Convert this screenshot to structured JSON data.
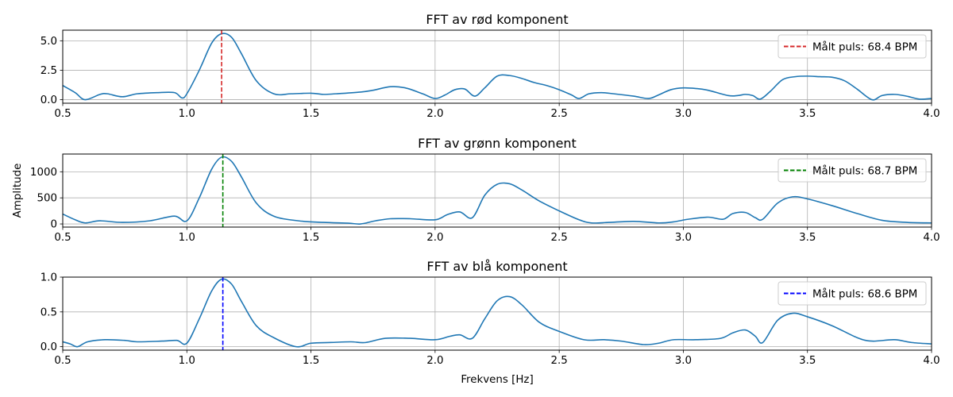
{
  "figure": {
    "xlabel": "Frekvens [Hz]",
    "ylabel": "Amplitude"
  },
  "chart_data": [
    {
      "type": "line",
      "title": "FFT av rød komponent",
      "xlabel": "",
      "ylabel": "",
      "xlim": [
        0.5,
        4.0
      ],
      "ylim": [
        -0.3,
        5.9
      ],
      "xticks": [
        0.5,
        1.0,
        1.5,
        2.0,
        2.5,
        3.0,
        3.5,
        4.0
      ],
      "xtick_labels": [
        "0.5",
        "1.0",
        "1.5",
        "2.0",
        "2.5",
        "3.0",
        "3.5",
        "4.0"
      ],
      "yticks": [
        0.0,
        2.5,
        5.0
      ],
      "ytick_labels": [
        "0.0",
        "2.5",
        "5.0"
      ],
      "grid": true,
      "legend_position": "top-right",
      "series": [
        {
          "color": "#1f77b4",
          "x": [
            0.5,
            0.55,
            0.59,
            0.65,
            0.68,
            0.74,
            0.8,
            0.88,
            0.95,
            0.98,
            1.0,
            1.05,
            1.1,
            1.14,
            1.18,
            1.22,
            1.28,
            1.35,
            1.42,
            1.5,
            1.55,
            1.6,
            1.7,
            1.75,
            1.82,
            1.88,
            1.95,
            2.0,
            2.04,
            2.08,
            2.12,
            2.16,
            2.2,
            2.25,
            2.3,
            2.35,
            2.4,
            2.45,
            2.5,
            2.55,
            2.58,
            2.62,
            2.67,
            2.72,
            2.8,
            2.86,
            2.9,
            2.95,
            3.0,
            3.05,
            3.1,
            3.18,
            3.22,
            3.25,
            3.28,
            3.31,
            3.35,
            3.4,
            3.45,
            3.5,
            3.55,
            3.6,
            3.65,
            3.7,
            3.76,
            3.8,
            3.85,
            3.9,
            3.95,
            4.0
          ],
          "values": [
            1.2,
            0.6,
            0.0,
            0.45,
            0.5,
            0.25,
            0.5,
            0.6,
            0.6,
            0.15,
            0.5,
            2.5,
            4.8,
            5.6,
            5.3,
            3.9,
            1.6,
            0.5,
            0.5,
            0.55,
            0.45,
            0.5,
            0.65,
            0.8,
            1.1,
            1.0,
            0.5,
            0.1,
            0.4,
            0.85,
            0.9,
            0.3,
            1.0,
            2.0,
            2.05,
            1.8,
            1.45,
            1.2,
            0.85,
            0.4,
            0.1,
            0.5,
            0.6,
            0.5,
            0.3,
            0.1,
            0.4,
            0.85,
            1.0,
            0.95,
            0.8,
            0.35,
            0.35,
            0.45,
            0.35,
            0.05,
            0.7,
            1.7,
            1.95,
            2.0,
            1.95,
            1.9,
            1.6,
            0.9,
            0.0,
            0.35,
            0.45,
            0.3,
            0.05,
            0.1
          ]
        }
      ],
      "marker": {
        "x": 1.14,
        "color": "#d62728",
        "label": "Målt puls: 68.4 BPM"
      }
    },
    {
      "type": "line",
      "title": "FFT av grønn komponent",
      "xlabel": "",
      "ylabel": "Amplitude",
      "xlim": [
        0.5,
        4.0
      ],
      "ylim": [
        -60,
        1340
      ],
      "xticks": [
        0.5,
        1.0,
        1.5,
        2.0,
        2.5,
        3.0,
        3.5,
        4.0
      ],
      "xtick_labels": [
        "0.5",
        "1.0",
        "1.5",
        "2.0",
        "2.5",
        "3.0",
        "3.5",
        "4.0"
      ],
      "yticks": [
        0,
        500,
        1000
      ],
      "ytick_labels": [
        "0",
        "500",
        "1000"
      ],
      "grid": true,
      "legend_position": "top-right",
      "series": [
        {
          "color": "#1f77b4",
          "x": [
            0.5,
            0.55,
            0.59,
            0.65,
            0.74,
            0.85,
            0.95,
            1.0,
            1.05,
            1.1,
            1.14,
            1.18,
            1.22,
            1.28,
            1.35,
            1.45,
            1.55,
            1.65,
            1.7,
            1.76,
            1.82,
            1.9,
            2.0,
            2.05,
            2.1,
            2.15,
            2.2,
            2.25,
            2.3,
            2.35,
            2.42,
            2.5,
            2.58,
            2.63,
            2.7,
            2.8,
            2.9,
            2.96,
            3.02,
            3.1,
            3.16,
            3.2,
            3.25,
            3.29,
            3.32,
            3.38,
            3.44,
            3.5,
            3.6,
            3.7,
            3.8,
            3.9,
            4.0
          ],
          "values": [
            190,
            80,
            20,
            60,
            30,
            60,
            150,
            60,
            500,
            1050,
            1280,
            1200,
            900,
            400,
            150,
            60,
            30,
            15,
            0,
            60,
            100,
            100,
            80,
            180,
            230,
            120,
            550,
            760,
            770,
            650,
            440,
            250,
            80,
            20,
            30,
            50,
            20,
            40,
            90,
            130,
            90,
            200,
            220,
            120,
            90,
            400,
            520,
            480,
            350,
            200,
            70,
            30,
            20
          ]
        }
      ],
      "marker": {
        "x": 1.145,
        "color": "#008000",
        "label": "Målt puls: 68.7 BPM"
      }
    },
    {
      "type": "line",
      "title": "FFT av blå komponent",
      "xlabel": "Frekvens [Hz]",
      "ylabel": "",
      "xlim": [
        0.5,
        4.0
      ],
      "ylim": [
        -0.05,
        1.0
      ],
      "xticks": [
        0.5,
        1.0,
        1.5,
        2.0,
        2.5,
        3.0,
        3.5,
        4.0
      ],
      "xtick_labels": [
        "0.5",
        "1.0",
        "1.5",
        "2.0",
        "2.5",
        "3.0",
        "3.5",
        "4.0"
      ],
      "yticks": [
        0.0,
        0.5,
        1.0
      ],
      "ytick_labels": [
        "0.0",
        "0.5",
        "1.0"
      ],
      "grid": true,
      "legend_position": "top-right",
      "series": [
        {
          "color": "#1f77b4",
          "x": [
            0.5,
            0.53,
            0.56,
            0.6,
            0.67,
            0.75,
            0.8,
            0.9,
            0.96,
            1.0,
            1.05,
            1.1,
            1.14,
            1.18,
            1.22,
            1.28,
            1.35,
            1.44,
            1.5,
            1.58,
            1.66,
            1.72,
            1.8,
            1.9,
            2.0,
            2.06,
            2.1,
            2.15,
            2.2,
            2.25,
            2.3,
            2.35,
            2.42,
            2.5,
            2.6,
            2.68,
            2.75,
            2.84,
            2.9,
            2.96,
            3.05,
            3.15,
            3.2,
            3.25,
            3.29,
            3.32,
            3.38,
            3.44,
            3.5,
            3.6,
            3.7,
            3.76,
            3.85,
            3.92,
            4.0
          ],
          "values": [
            0.07,
            0.04,
            0.0,
            0.07,
            0.1,
            0.09,
            0.07,
            0.08,
            0.09,
            0.05,
            0.4,
            0.8,
            0.97,
            0.9,
            0.65,
            0.3,
            0.13,
            0.0,
            0.05,
            0.06,
            0.07,
            0.06,
            0.12,
            0.12,
            0.1,
            0.15,
            0.17,
            0.12,
            0.4,
            0.66,
            0.72,
            0.6,
            0.35,
            0.22,
            0.1,
            0.1,
            0.08,
            0.03,
            0.05,
            0.1,
            0.1,
            0.12,
            0.2,
            0.24,
            0.15,
            0.06,
            0.38,
            0.48,
            0.43,
            0.3,
            0.13,
            0.08,
            0.1,
            0.06,
            0.04
          ]
        }
      ],
      "marker": {
        "x": 1.145,
        "color": "#0000ff",
        "label": "Målt puls: 68.6 BPM"
      }
    }
  ]
}
